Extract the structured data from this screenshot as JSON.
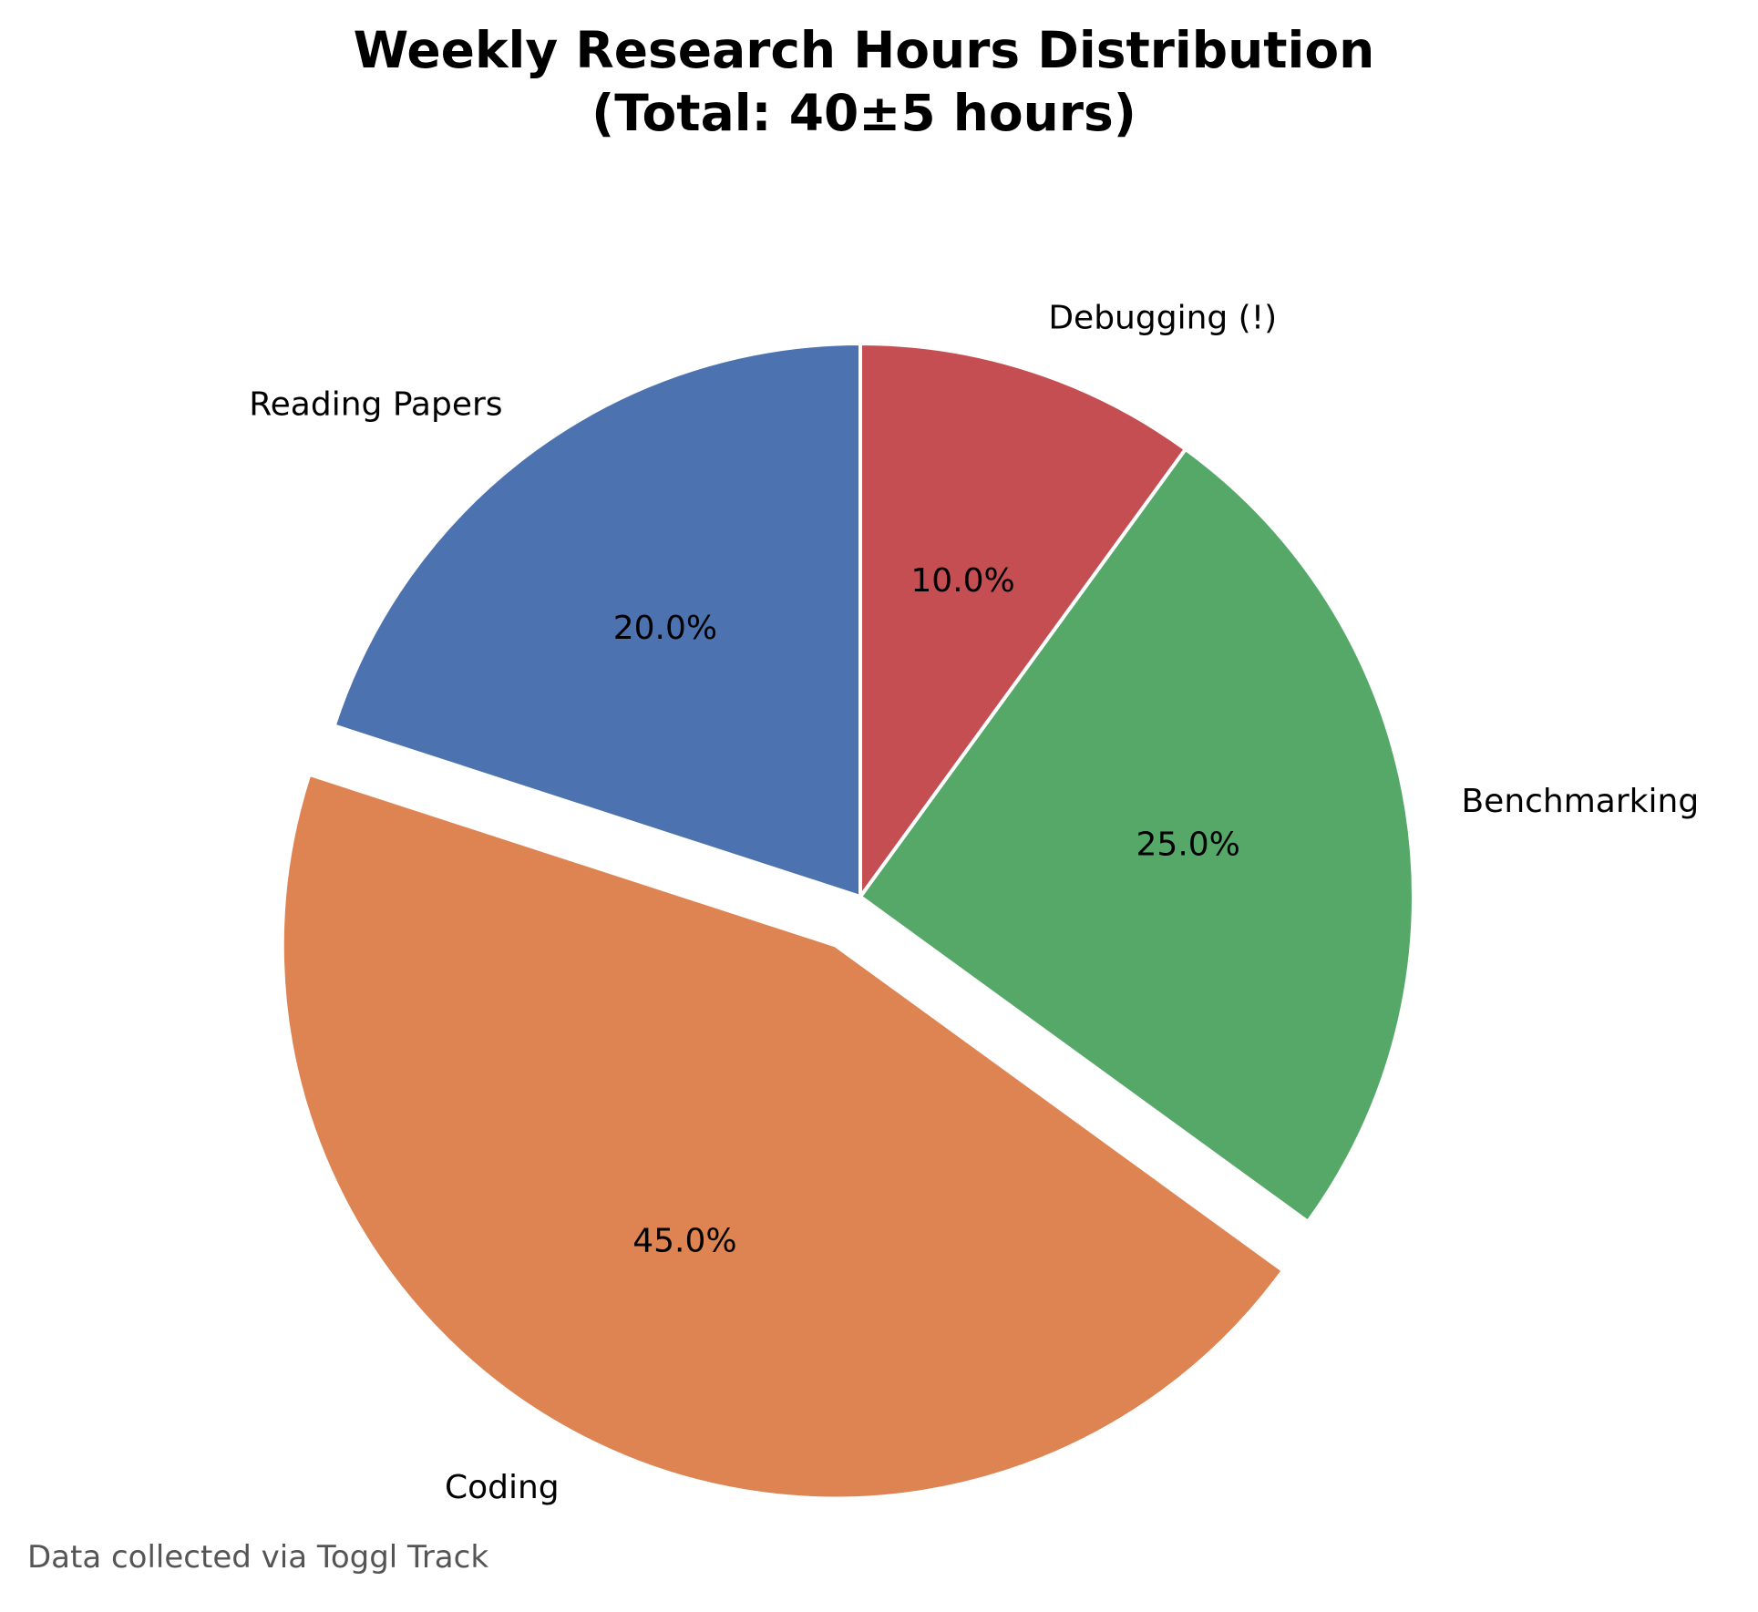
{
  "chart_data": {
    "type": "pie",
    "title_lines": [
      "Weekly Research Hours Distribution",
      "(Total: 40±5 hours)"
    ],
    "slices": [
      {
        "label": "Reading Papers",
        "value": 20.0,
        "pct_label": "20.0%",
        "color": "#4c72b0",
        "exploded": false
      },
      {
        "label": "Coding",
        "value": 45.0,
        "pct_label": "45.0%",
        "color": "#dd8452",
        "exploded": true
      },
      {
        "label": "Benchmarking",
        "value": 25.0,
        "pct_label": "25.0%",
        "color": "#55a868",
        "exploded": false
      },
      {
        "label": "Debugging (!)",
        "value": 10.0,
        "pct_label": "10.0%",
        "color": "#c44e52",
        "exploded": false
      }
    ],
    "start_angle_deg": 90,
    "direction": "counterclockwise",
    "caption": "Data collected via Toggl Track"
  }
}
